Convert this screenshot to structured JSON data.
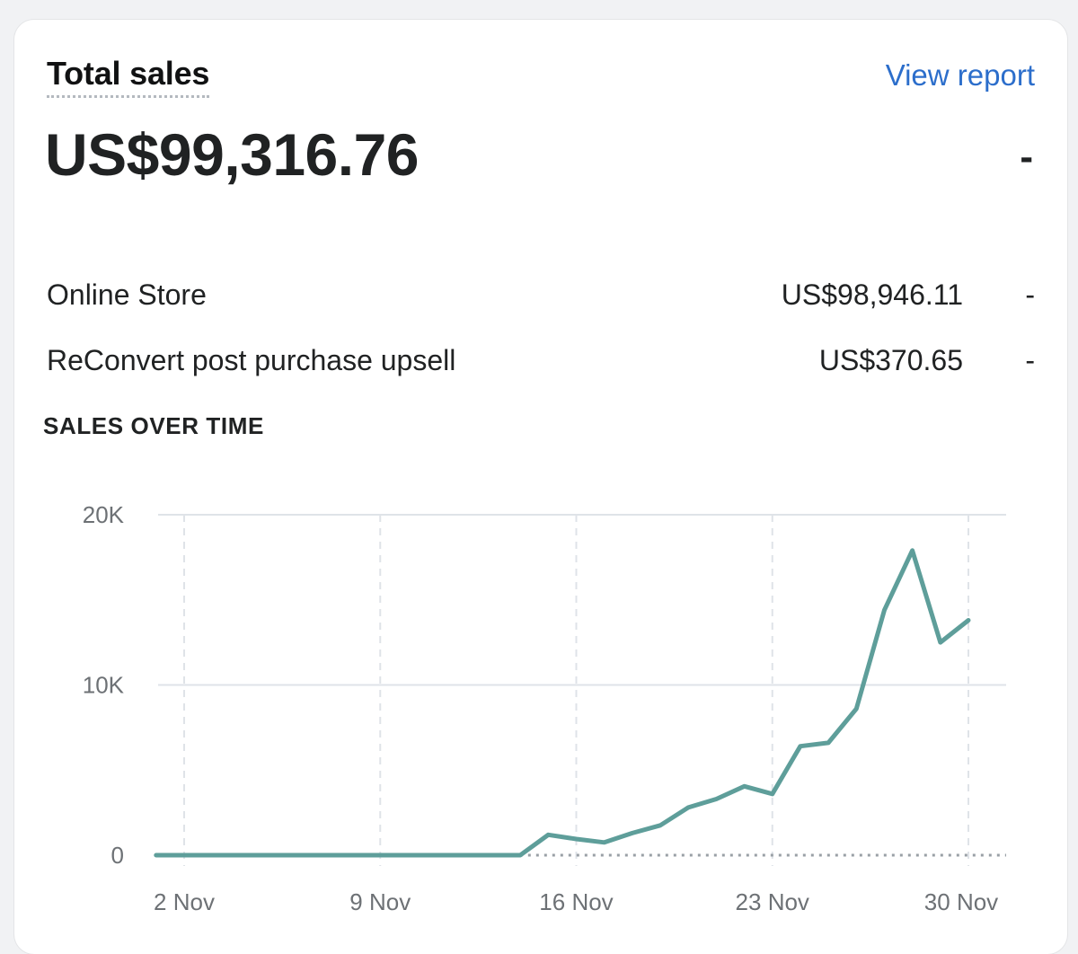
{
  "card": {
    "title": "Total sales",
    "view_report_label": "View report",
    "total_value": "US$99,316.76",
    "total_change": "-"
  },
  "channels": [
    {
      "label": "Online Store",
      "value": "US$98,946.11",
      "change": "-"
    },
    {
      "label": "ReConvert post purchase upsell",
      "value": "US$370.65",
      "change": "-"
    }
  ],
  "chart_section": {
    "heading": "SALES OVER TIME"
  },
  "colors": {
    "line": "#5e9e9a",
    "link": "#2c6ecb"
  },
  "chart_data": {
    "type": "line",
    "title": "SALES OVER TIME",
    "xlabel": "",
    "ylabel": "",
    "x_tick_labels": [
      "2 Nov",
      "9 Nov",
      "16 Nov",
      "23 Nov",
      "30 Nov"
    ],
    "x_tick_days": [
      2,
      9,
      16,
      23,
      30
    ],
    "y_tick_labels": [
      "0",
      "10K",
      "20K"
    ],
    "y_tick_values": [
      0,
      10000,
      20000
    ],
    "ylim": [
      0,
      20000
    ],
    "xlim": [
      1,
      31.3
    ],
    "grid": true,
    "series": [
      {
        "x": [
          1,
          2,
          3,
          4,
          5,
          6,
          7,
          8,
          9,
          10,
          11,
          12,
          13,
          14,
          15,
          16,
          17,
          18,
          19,
          20,
          21,
          22,
          23,
          24,
          25,
          26,
          27,
          28,
          29,
          30
        ],
        "values": [
          0,
          0,
          0,
          0,
          0,
          0,
          0,
          0,
          0,
          0,
          0,
          0,
          0,
          0,
          1200,
          950,
          750,
          1300,
          1750,
          2800,
          3300,
          4050,
          3600,
          6400,
          6600,
          8600,
          14400,
          17900,
          12500,
          13800
        ]
      }
    ],
    "comparison_baseline": 0
  }
}
